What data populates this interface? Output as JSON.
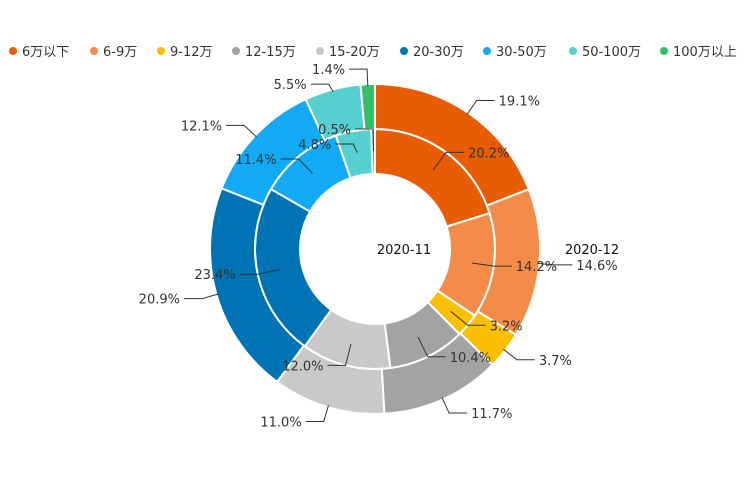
{
  "chart_data": {
    "type": "pie",
    "variant": "nested-donut",
    "categories": [
      "6万以下",
      "6-9万",
      "9-12万",
      "12-15万",
      "15-20万",
      "20-30万",
      "30-50万",
      "50-100万",
      "100万以上"
    ],
    "colors": [
      "#e85d04",
      "#f28c48",
      "#fbbf00",
      "#a3a3a3",
      "#c9c9c9",
      "#0073b4",
      "#12aaf5",
      "#55cfcf",
      "#33c06b"
    ],
    "series": [
      {
        "name": "2020-11",
        "ring": "inner",
        "values": [
          20.2,
          14.2,
          3.2,
          10.4,
          12.0,
          23.4,
          11.4,
          4.8,
          0.5
        ],
        "labels": [
          "20.2%",
          "14.2%",
          "3.2%",
          "10.4%",
          "12.0%",
          "23.4%",
          "11.4%",
          "4.8%",
          "0.5%"
        ]
      },
      {
        "name": "2020-12",
        "ring": "outer",
        "values": [
          19.1,
          14.6,
          3.7,
          11.7,
          11.0,
          20.9,
          12.1,
          5.5,
          1.4
        ],
        "labels": [
          "19.1%",
          "14.6%",
          "3.7%",
          "11.7%",
          "11.0%",
          "20.9%",
          "12.1%",
          "5.5%",
          "1.4%"
        ]
      }
    ],
    "legend_position": "top"
  }
}
